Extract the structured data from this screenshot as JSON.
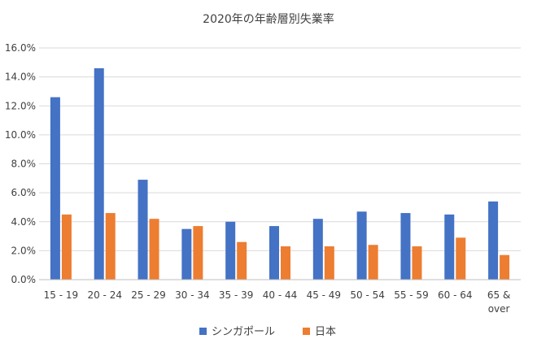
{
  "chart_data": {
    "type": "bar",
    "title": "2020年の年齢層別失業率",
    "xlabel": "",
    "ylabel": "",
    "categories": [
      [
        "15 - 19"
      ],
      [
        "20 - 24"
      ],
      [
        "25 - 29"
      ],
      [
        "30 - 34"
      ],
      [
        "35 - 39"
      ],
      [
        "40 - 44"
      ],
      [
        "45 - 49"
      ],
      [
        "50 - 54"
      ],
      [
        "55 - 59"
      ],
      [
        "60 - 64"
      ],
      [
        "65 &",
        "over"
      ]
    ],
    "series": [
      {
        "name": "シンガポール",
        "color": "#4472c4",
        "values": [
          12.6,
          14.6,
          6.9,
          3.5,
          4.0,
          3.7,
          4.2,
          4.7,
          4.6,
          4.5,
          5.4
        ]
      },
      {
        "name": "日本",
        "color": "#ed7d31",
        "values": [
          4.5,
          4.6,
          4.2,
          3.7,
          2.6,
          2.3,
          2.3,
          2.4,
          2.3,
          2.9,
          1.7
        ]
      }
    ],
    "ylim": [
      0,
      16
    ],
    "ytick_step": 2,
    "ytick_format": "percent_1dp",
    "grid": true,
    "legend_position": "bottom-center"
  }
}
